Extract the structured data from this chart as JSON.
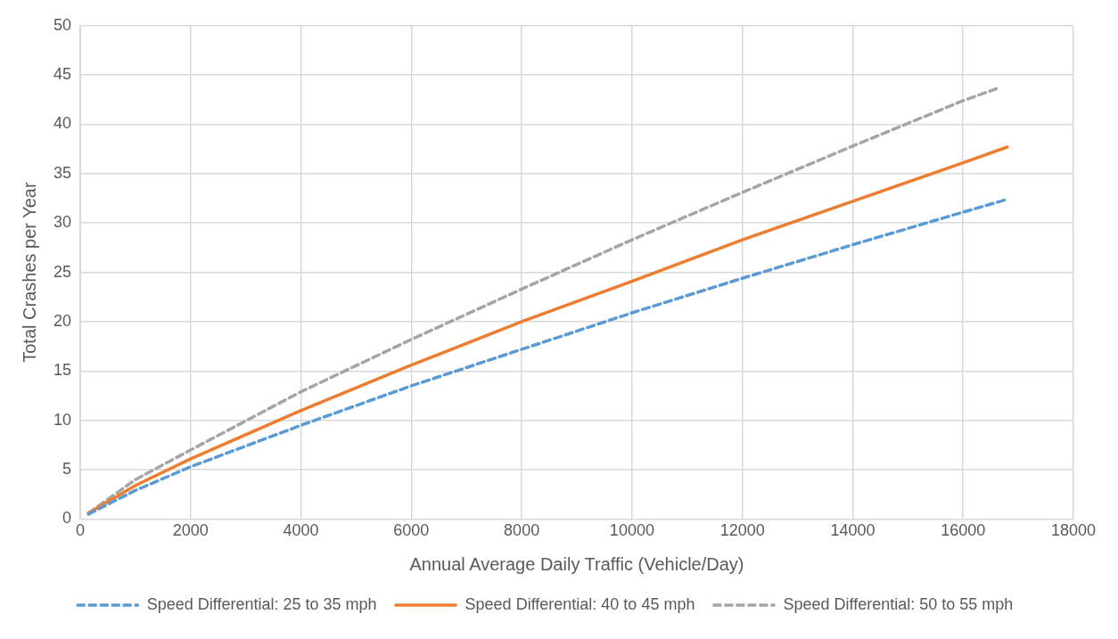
{
  "chart_data": {
    "type": "line",
    "xlabel": "Annual Average Daily Traffic (Vehicle/Day)",
    "ylabel": "Total Crashes per Year",
    "xlim": [
      0,
      18000
    ],
    "xticks": [
      0,
      2000,
      4000,
      6000,
      8000,
      10000,
      12000,
      14000,
      16000,
      18000
    ],
    "ylim": [
      0,
      50
    ],
    "yticks": [
      0,
      5,
      10,
      15,
      20,
      25,
      30,
      35,
      40,
      45,
      50
    ],
    "grid": true,
    "legend": "bottom",
    "marker": "none",
    "series": [
      {
        "name": "Speed Differential: 25 to 35 mph",
        "color": "#5b9bd5",
        "line_style": "dashed",
        "x": [
          150,
          1000,
          2000,
          4000,
          6000,
          8000,
          10000,
          12000,
          14000,
          16000,
          16800
        ],
        "values": [
          0.5,
          2.9,
          5.3,
          9.5,
          13.5,
          17.2,
          20.9,
          24.4,
          27.8,
          31.1,
          32.4
        ]
      },
      {
        "name": "Speed Differential: 40 to 45 mph",
        "color": "#ed7d31",
        "line_style": "solid",
        "x": [
          150,
          1000,
          2000,
          4000,
          6000,
          8000,
          10000,
          12000,
          14000,
          16000,
          16800
        ],
        "values": [
          0.6,
          3.4,
          6.1,
          11,
          15.6,
          20,
          24.1,
          28.3,
          32.2,
          36.1,
          37.7
        ]
      },
      {
        "name": "Speed Differential: 50 to 55 mph",
        "color": "#a5a5a5",
        "line_style": "dashed",
        "x": [
          150,
          1000,
          2000,
          4000,
          6000,
          8000,
          10000,
          12000,
          14000,
          16000,
          16600
        ],
        "values": [
          0.6,
          4,
          7,
          12.9,
          18.2,
          23.3,
          28.3,
          33.1,
          37.8,
          42.4,
          43.6
        ]
      }
    ]
  }
}
